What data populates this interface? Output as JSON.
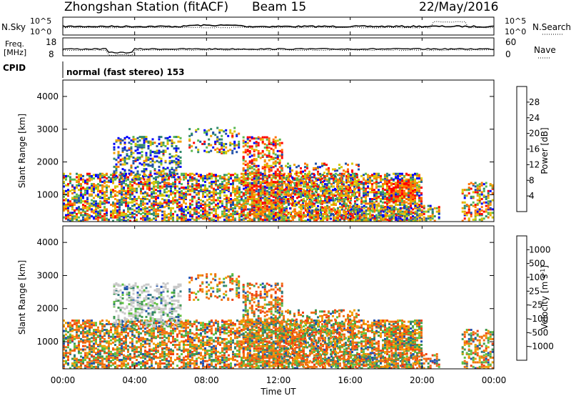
{
  "header": {
    "station": "Zhongshan Station (fitACF)",
    "beam": "Beam 15",
    "date": "22/May/2016"
  },
  "panels": {
    "nsky_label": "N.Sky",
    "nsearch_label": "N.Search",
    "nsky_ticks": [
      "10^5",
      "10^0"
    ],
    "nsearch_ticks": [
      "10^5",
      "10^0"
    ],
    "freq_label_1": "Freq.",
    "freq_label_2": "[MHz]",
    "freq_ticks": [
      "18",
      "8"
    ],
    "nave_label": "Nave",
    "nave_ticks": [
      "60",
      "0"
    ],
    "cpid_label": "CPID",
    "cpid_text": "normal (fast stereo) 153"
  },
  "chart_data": [
    {
      "type": "heatmap",
      "name": "power",
      "ylabel": "Slant Range [km]",
      "yticks": [
        "4000",
        "3000",
        "2000",
        "1000"
      ],
      "ytick_values": [
        4000,
        3000,
        2000,
        1000
      ],
      "ylim": [
        180,
        4500
      ],
      "xlim_hours": [
        0,
        24
      ],
      "colorbar_title": "Power [dB]",
      "colorbar_labels": [
        "28",
        "24",
        "20",
        "16",
        "12",
        "8",
        "4"
      ],
      "colorbar_colors": [
        "#0000ff",
        "#1f50a8",
        "#2f8a6a",
        "#58b850",
        "#d6c800",
        "#f0a000",
        "#ff7000",
        "#ff0000"
      ]
    },
    {
      "type": "heatmap",
      "name": "velocity",
      "ylabel": "Slant Range [km]",
      "yticks": [
        "4000",
        "3000",
        "2000",
        "1000"
      ],
      "ytick_values": [
        4000,
        3000,
        2000,
        1000
      ],
      "ylim": [
        180,
        4500
      ],
      "xlim_hours": [
        0,
        24
      ],
      "xlabel": "Time UT",
      "xticks": [
        "00:00",
        "04:00",
        "08:00",
        "12:00",
        "16:00",
        "20:00",
        "00:00"
      ],
      "xtick_hours": [
        0,
        4,
        8,
        12,
        16,
        20,
        24
      ],
      "colorbar_title": "Velocity [m s",
      "colorbar_title_sup": "-1",
      "colorbar_title_end": "]",
      "colorbar_labels": [
        "1000",
        "500",
        "100",
        "25",
        "-25",
        "-100",
        "-500",
        "-1000"
      ],
      "colorbar_colors": [
        "#2050b0",
        "#2f7a7a",
        "#3f9a50",
        "#60c040",
        "#c8c8c8",
        "#f0a000",
        "#f07010",
        "#f04010",
        "#ff0000"
      ]
    }
  ]
}
